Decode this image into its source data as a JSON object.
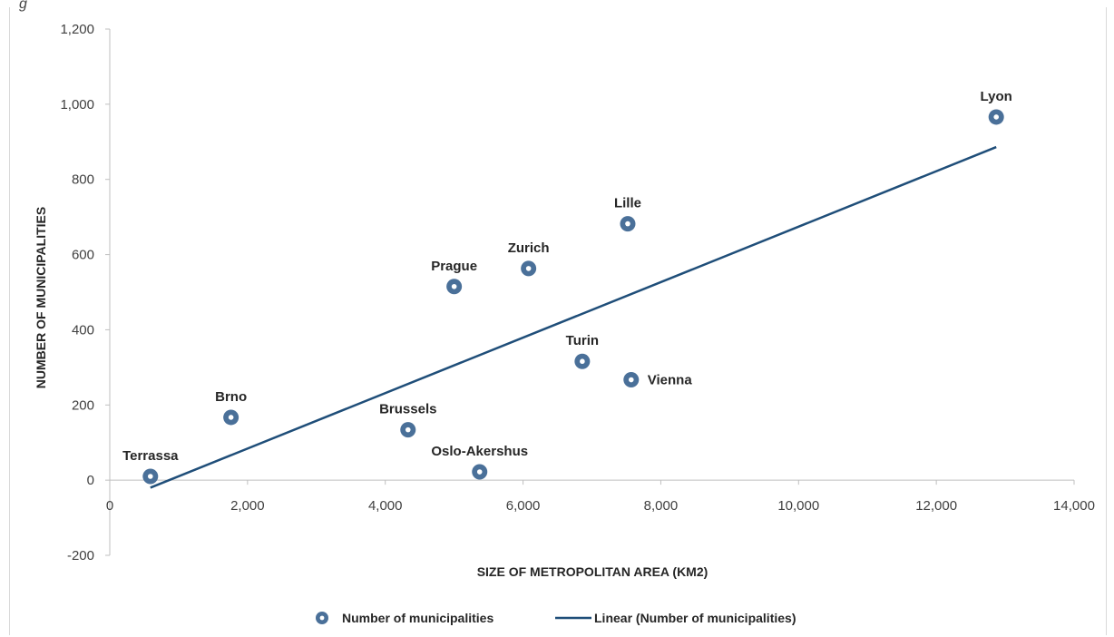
{
  "chart_data": {
    "type": "scatter",
    "title": "",
    "xlabel": "SIZE OF METROPOLITAN AREA (KM2)",
    "ylabel": "NUMBER OF MUNICIPALITIES",
    "xlim": [
      0,
      14000
    ],
    "ylim": [
      -200,
      1200
    ],
    "x_ticks": [
      0,
      2000,
      4000,
      6000,
      8000,
      10000,
      12000,
      14000
    ],
    "x_tick_labels": [
      "0",
      "2,000",
      "4,000",
      "6,000",
      "8,000",
      "10,000",
      "12,000",
      "14,000"
    ],
    "y_ticks": [
      -200,
      0,
      200,
      400,
      600,
      800,
      1000,
      1200
    ],
    "y_tick_labels": [
      "-200",
      "0",
      "200",
      "400",
      "600",
      "800",
      "1,000",
      "1,200"
    ],
    "grid": false,
    "series": [
      {
        "name": "Number of municipalities",
        "color": "#4a7099",
        "points": [
          {
            "label": "Terrassa",
            "x": 590,
            "y": 10,
            "label_pos": "above"
          },
          {
            "label": "Brno",
            "x": 1760,
            "y": 167,
            "label_pos": "above"
          },
          {
            "label": "Brussels",
            "x": 4330,
            "y": 134,
            "label_pos": "above"
          },
          {
            "label": "Oslo-Akershus",
            "x": 5370,
            "y": 22,
            "label_pos": "above"
          },
          {
            "label": "Prague",
            "x": 5000,
            "y": 515,
            "label_pos": "above"
          },
          {
            "label": "Zurich",
            "x": 6080,
            "y": 563,
            "label_pos": "above"
          },
          {
            "label": "Turin",
            "x": 6860,
            "y": 316,
            "label_pos": "above"
          },
          {
            "label": "Lille",
            "x": 7520,
            "y": 682,
            "label_pos": "above"
          },
          {
            "label": "Vienna",
            "x": 7570,
            "y": 267,
            "label_pos": "right"
          },
          {
            "label": "Lyon",
            "x": 12870,
            "y": 966,
            "label_pos": "above"
          }
        ]
      }
    ],
    "trendline": {
      "name": "Linear (Number of municipalities)",
      "color": "#1f4e79",
      "type": "linear",
      "x": [
        590,
        12870
      ],
      "y": [
        -20,
        886
      ]
    },
    "legend_position": "bottom"
  }
}
